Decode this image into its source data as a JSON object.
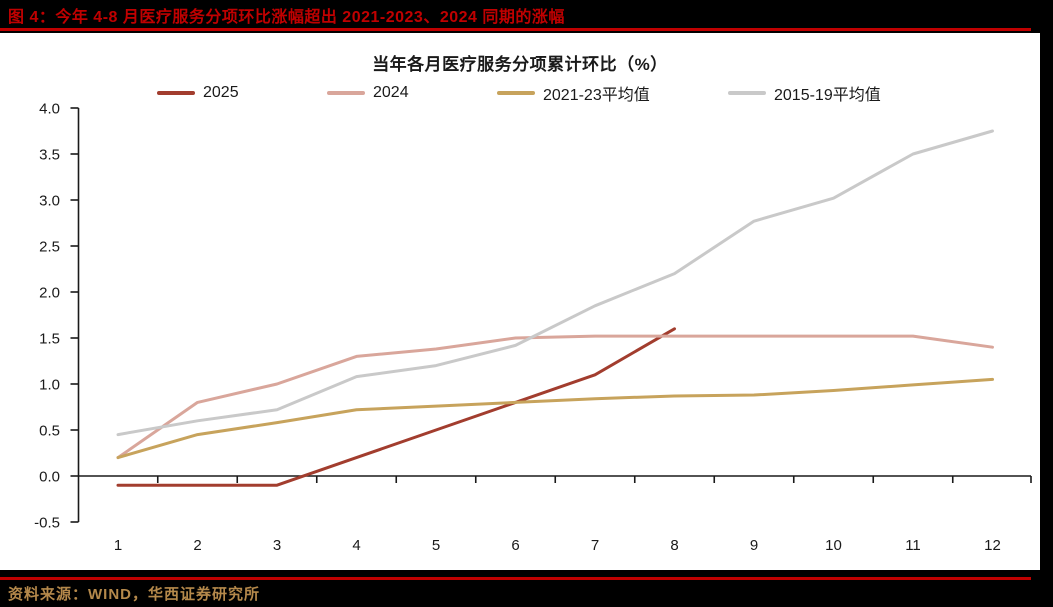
{
  "header": {
    "title": "图 4：今年 4-8 月医疗服务分项环比涨幅超出 2021-2023、2024 同期的涨幅"
  },
  "footer": {
    "source": "资料来源：WIND，华西证券研究所"
  },
  "colors": {
    "band_bg": "#000000",
    "paper_bg": "#ffffff",
    "accent_red": "#c00000",
    "source_text": "#b5894b",
    "axis": "#1a1a1a",
    "tick_text": "#1a1a1a"
  },
  "chart_data": {
    "type": "line",
    "title": "当年各月医疗服务分项累计环比（%）",
    "xlabel": "",
    "ylabel": "",
    "x": [
      1,
      2,
      3,
      4,
      5,
      6,
      7,
      8,
      9,
      10,
      11,
      12
    ],
    "xtick_labels": [
      "1",
      "2",
      "3",
      "4",
      "5",
      "6",
      "7",
      "8",
      "9",
      "10",
      "11",
      "12"
    ],
    "ylim": [
      -0.5,
      4.0
    ],
    "ytick_step": 0.5,
    "ytick_labels": [
      "4.0",
      "3.5",
      "3.0",
      "2.5",
      "2.0",
      "1.5",
      "1.0",
      "0.5",
      "0.0",
      "-0.5"
    ],
    "grid": false,
    "legend_position": "top",
    "series": [
      {
        "name": "2025",
        "color": "#a23d2e",
        "values": [
          -0.1,
          -0.1,
          -0.1,
          0.2,
          0.5,
          0.8,
          1.1,
          1.6
        ]
      },
      {
        "name": "2024",
        "color": "#d9a69b",
        "values": [
          0.2,
          0.8,
          1.0,
          1.3,
          1.38,
          1.5,
          1.52,
          1.52,
          1.52,
          1.52,
          1.52,
          1.4
        ]
      },
      {
        "name": "2021-23平均值",
        "color": "#c7a35c",
        "values": [
          0.2,
          0.45,
          0.58,
          0.72,
          0.76,
          0.8,
          0.84,
          0.87,
          0.88,
          0.93,
          0.99,
          1.05
        ]
      },
      {
        "name": "2015-19平均值",
        "color": "#c9c9c9",
        "values": [
          0.45,
          0.6,
          0.72,
          1.08,
          1.2,
          1.42,
          1.85,
          2.2,
          2.77,
          3.02,
          3.5,
          3.75
        ]
      }
    ]
  }
}
